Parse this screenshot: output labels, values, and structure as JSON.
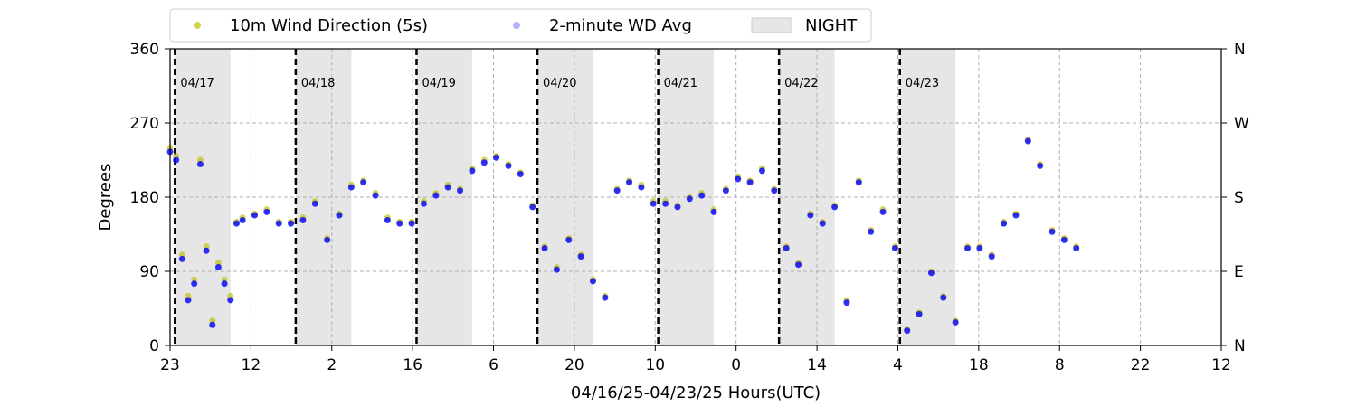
{
  "chart_data": {
    "type": "scatter",
    "xlabel": "04/16/25-04/23/25  Hours(UTC)",
    "ylabel": "Degrees",
    "ylim": [
      0,
      360
    ],
    "xlim": [
      0,
      8.7
    ],
    "x_unit": "days after 04/16/25 23:00 UTC",
    "x_tick_labels": [
      "23",
      "12",
      "2",
      "16",
      "6",
      "20",
      "10",
      "0",
      "14",
      "4",
      "18",
      "8",
      "22",
      "12"
    ],
    "y_ticks": [
      0,
      90,
      180,
      270,
      360
    ],
    "right_axis_labels": [
      "N",
      "E",
      "S",
      "W",
      "N"
    ],
    "grid": true,
    "legend": {
      "placement": "top-center",
      "entries": [
        {
          "label": "10m Wind Direction (5s)",
          "color": "#bfbf00",
          "marker": "circle"
        },
        {
          "label": "2-minute WD Avg",
          "color": "#0000ff",
          "marker": "circle"
        },
        {
          "label": "NIGHT",
          "color": "#e6e6e6",
          "marker": "patch"
        }
      ]
    },
    "day_markers": [
      {
        "label": "04/17",
        "x": 0.04
      },
      {
        "label": "04/18",
        "x": 1.04
      },
      {
        "label": "04/19",
        "x": 2.04
      },
      {
        "label": "04/20",
        "x": 3.04
      },
      {
        "label": "04/21",
        "x": 4.04
      },
      {
        "label": "04/22",
        "x": 5.04
      },
      {
        "label": "04/23",
        "x": 6.04
      }
    ],
    "night_periods": [
      [
        0.04,
        0.5
      ],
      [
        1.04,
        1.5
      ],
      [
        2.04,
        2.5
      ],
      [
        3.04,
        3.5
      ],
      [
        4.04,
        4.5
      ],
      [
        5.04,
        5.5
      ],
      [
        6.04,
        6.5
      ]
    ],
    "series": [
      {
        "name": "10m Wind Direction (5s)",
        "color": "#bfbf00",
        "x": [
          0.0,
          0.05,
          0.1,
          0.15,
          0.2,
          0.25,
          0.3,
          0.35,
          0.4,
          0.45,
          0.5,
          0.55,
          0.6,
          0.7,
          0.8,
          0.9,
          1.0,
          1.1,
          1.2,
          1.3,
          1.4,
          1.5,
          1.6,
          1.7,
          1.8,
          1.9,
          2.0,
          2.1,
          2.2,
          2.3,
          2.4,
          2.5,
          2.6,
          2.7,
          2.8,
          2.9,
          3.0,
          3.1,
          3.2,
          3.3,
          3.4,
          3.5,
          3.6,
          3.7,
          3.8,
          3.9,
          4.0,
          4.1,
          4.2,
          4.3,
          4.4,
          4.5,
          4.6,
          4.7,
          4.8,
          4.9,
          5.0,
          5.1,
          5.2,
          5.3,
          5.4,
          5.5,
          5.6,
          5.7,
          5.8,
          5.9,
          6.0,
          6.1,
          6.2,
          6.3,
          6.4,
          6.5,
          6.6,
          6.7,
          6.8,
          6.9,
          7.0,
          7.1,
          7.2,
          7.3,
          7.4,
          7.5
        ],
        "y": [
          240,
          230,
          110,
          60,
          80,
          225,
          120,
          30,
          100,
          80,
          60,
          150,
          155,
          160,
          165,
          150,
          150,
          155,
          175,
          130,
          160,
          195,
          200,
          185,
          155,
          150,
          150,
          175,
          185,
          195,
          190,
          215,
          225,
          230,
          220,
          210,
          170,
          120,
          95,
          130,
          110,
          80,
          60,
          190,
          200,
          195,
          175,
          175,
          170,
          180,
          185,
          165,
          190,
          205,
          200,
          215,
          190,
          120,
          100,
          160,
          150,
          170,
          55,
          200,
          140,
          165,
          120,
          20,
          40,
          90,
          60,
          30,
          120,
          120,
          110,
          150,
          160,
          250,
          220,
          140,
          130,
          120
        ]
      },
      {
        "name": "2-minute WD Avg",
        "color": "#0000ff",
        "x": [
          0.0,
          0.05,
          0.1,
          0.15,
          0.2,
          0.25,
          0.3,
          0.35,
          0.4,
          0.45,
          0.5,
          0.55,
          0.6,
          0.7,
          0.8,
          0.9,
          1.0,
          1.1,
          1.2,
          1.3,
          1.4,
          1.5,
          1.6,
          1.7,
          1.8,
          1.9,
          2.0,
          2.1,
          2.2,
          2.3,
          2.4,
          2.5,
          2.6,
          2.7,
          2.8,
          2.9,
          3.0,
          3.1,
          3.2,
          3.3,
          3.4,
          3.5,
          3.6,
          3.7,
          3.8,
          3.9,
          4.0,
          4.1,
          4.2,
          4.3,
          4.4,
          4.5,
          4.6,
          4.7,
          4.8,
          4.9,
          5.0,
          5.1,
          5.2,
          5.3,
          5.4,
          5.5,
          5.6,
          5.7,
          5.8,
          5.9,
          6.0,
          6.1,
          6.2,
          6.3,
          6.4,
          6.5,
          6.6,
          6.7,
          6.8,
          6.9,
          7.0,
          7.1,
          7.2,
          7.3,
          7.4,
          7.5
        ],
        "y": [
          235,
          225,
          105,
          55,
          75,
          220,
          115,
          25,
          95,
          75,
          55,
          148,
          152,
          158,
          162,
          148,
          148,
          152,
          172,
          128,
          158,
          192,
          198,
          182,
          152,
          148,
          148,
          172,
          182,
          192,
          188,
          212,
          222,
          228,
          218,
          208,
          168,
          118,
          92,
          128,
          108,
          78,
          58,
          188,
          198,
          192,
          172,
          172,
          168,
          178,
          182,
          162,
          188,
          202,
          198,
          212,
          188,
          118,
          98,
          158,
          148,
          168,
          52,
          198,
          138,
          162,
          118,
          18,
          38,
          88,
          58,
          28,
          118,
          118,
          108,
          148,
          158,
          248,
          218,
          138,
          128,
          118
        ]
      }
    ]
  }
}
